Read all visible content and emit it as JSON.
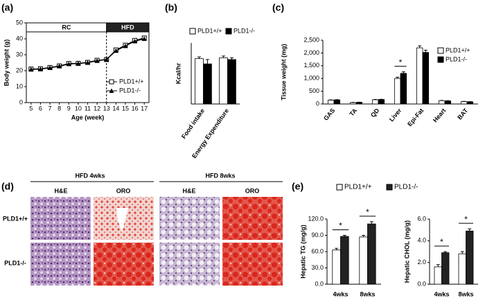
{
  "panel_labels": [
    "(a)",
    "(b)",
    "(c)",
    "(d)",
    "(e)"
  ],
  "chart_data": [
    {
      "type": "line",
      "xlabel": "Age (week)",
      "ylabel": "Body weight (g)",
      "x": [
        5,
        6,
        7,
        8,
        9,
        10,
        11,
        12,
        13,
        14,
        15,
        16,
        17
      ],
      "xlim": [
        4.5,
        17.5
      ],
      "xticks": [
        5,
        6,
        7,
        8,
        9,
        10,
        11,
        12,
        13,
        14,
        15,
        16,
        17
      ],
      "ylim": [
        0,
        50
      ],
      "yticks": [
        0,
        10,
        20,
        30,
        40,
        50
      ],
      "regions": [
        {
          "label": "RC",
          "start": 4.5,
          "end": 13,
          "color": "#ffffff"
        },
        {
          "label": "HFD",
          "start": 13,
          "end": 17.5,
          "color": "#222222"
        }
      ],
      "series": [
        {
          "name": "PLD1+/+",
          "color": "#000000",
          "marker": "square-open",
          "values": [
            21,
            21.2,
            22,
            23,
            24.5,
            24.6,
            25.2,
            26.5,
            27,
            33,
            36,
            39,
            40.5
          ]
        },
        {
          "name": "PLD1-/-",
          "color": "#000000",
          "marker": "triangle",
          "values": [
            20.8,
            21,
            21.8,
            22.8,
            24.2,
            24.5,
            25,
            26.2,
            27,
            32.5,
            35.5,
            38.5,
            40
          ]
        }
      ]
    },
    {
      "type": "bar",
      "ylabel": "Kcal/hr",
      "categories": [
        "Food intake",
        "Energy Expenditure"
      ],
      "ylim": [
        0,
        0.7
      ],
      "series": [
        {
          "name": "PLD1+/+",
          "color": "#ffffff",
          "values": [
            0.52,
            0.53
          ],
          "errors": [
            0.02,
            0.02
          ]
        },
        {
          "name": "PLD1-/-",
          "color": "#000000",
          "values": [
            0.46,
            0.51
          ],
          "errors": [
            0.05,
            0.02
          ]
        }
      ]
    },
    {
      "type": "bar",
      "ylabel": "Tissue weight (mg)",
      "categories": [
        "GAS",
        "TA",
        "QD",
        "Liver",
        "Epi-Fat",
        "Heart",
        "BAT"
      ],
      "ylim": [
        0,
        2500
      ],
      "yticks": [
        0,
        500,
        {
          "value": 1000,
          "label": "1,000"
        },
        {
          "value": 1500,
          "label": "1,500"
        },
        {
          "value": 2000,
          "label": "2,000"
        },
        {
          "value": 2500,
          "label": "2,500"
        }
      ],
      "significance": [
        null,
        null,
        null,
        "*",
        null,
        null,
        null
      ],
      "series": [
        {
          "name": "PLD1+/+",
          "color": "#ffffff",
          "values": [
            150,
            55,
            165,
            1000,
            2200,
            130,
            95
          ],
          "errors": [
            10,
            8,
            10,
            50,
            80,
            10,
            8
          ]
        },
        {
          "name": "PLD1-/-",
          "color": "#000000",
          "values": [
            160,
            65,
            175,
            1200,
            2020,
            120,
            85
          ],
          "errors": [
            10,
            8,
            10,
            60,
            90,
            10,
            8
          ]
        }
      ]
    },
    {
      "type": "bar",
      "ylabel": "Hepatic TG (mg/g)",
      "categories": [
        "4wks",
        "8wks"
      ],
      "ylim": [
        0,
        120
      ],
      "yticks": [
        {
          "value": 0,
          "label": "0.0"
        },
        {
          "value": 30,
          "label": "30.0"
        },
        {
          "value": 60,
          "label": "60.0"
        },
        {
          "value": 90,
          "label": "90.0"
        },
        {
          "value": 120,
          "label": "120.0"
        }
      ],
      "significance": [
        "*",
        "*"
      ],
      "series": [
        {
          "name": "PLD1+/+",
          "color": "#ffffff",
          "values": [
            63,
            87
          ],
          "errors": [
            3,
            3
          ]
        },
        {
          "name": "PLD1-/-",
          "color": "#222222",
          "values": [
            88,
            111
          ],
          "errors": [
            2,
            4
          ]
        }
      ]
    },
    {
      "type": "bar",
      "ylabel": "Hepatic CHOL (mg/g)",
      "categories": [
        "4wks",
        "8wks"
      ],
      "ylim": [
        0,
        6
      ],
      "yticks": [
        {
          "value": 0,
          "label": "0.0"
        },
        {
          "value": 2,
          "label": "2.0"
        },
        {
          "value": 4,
          "label": "4.0"
        },
        {
          "value": 6,
          "label": "6.0"
        }
      ],
      "significance": [
        "*",
        "*"
      ],
      "series": [
        {
          "color": "#ffffff",
          "values": [
            1.6,
            2.8
          ],
          "errors": [
            0.2,
            0.2
          ]
        },
        {
          "color": "#222222",
          "values": [
            2.9,
            4.9
          ],
          "errors": [
            0.1,
            0.2
          ]
        }
      ]
    }
  ],
  "histology": {
    "groups": [
      "HFD 4wks",
      "HFD 8wks"
    ],
    "stains": [
      "H&E",
      "ORO",
      "H&E",
      "ORO"
    ],
    "rows": [
      "PLD1+/+",
      "PLD1-/-"
    ]
  }
}
